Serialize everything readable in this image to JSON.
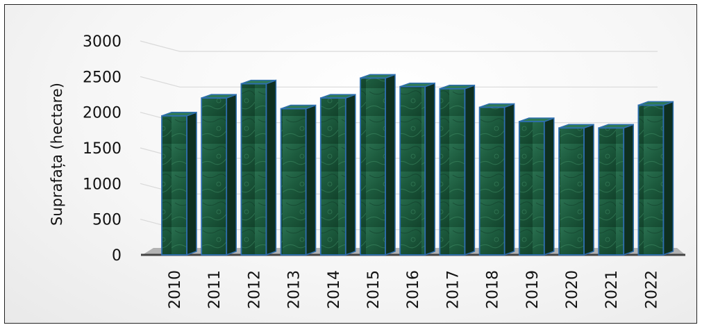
{
  "chart_data": {
    "type": "bar",
    "categories": [
      "2010",
      "2011",
      "2012",
      "2013",
      "2014",
      "2015",
      "2016",
      "2017",
      "2018",
      "2019",
      "2020",
      "2021",
      "2022"
    ],
    "values": [
      1950,
      2200,
      2400,
      2050,
      2200,
      2480,
      2360,
      2330,
      2070,
      1870,
      1780,
      1780,
      2100
    ],
    "ylabel": "Suprafața (hectare)",
    "ylim": [
      0,
      3000
    ],
    "yticks": [
      "0",
      "500",
      "1000",
      "1500",
      "2000",
      "2500",
      "3000"
    ],
    "grid": true,
    "style": "3d-bar",
    "colors": {
      "bar_front": "#1f5a3c",
      "bar_side": "#0e2f20",
      "bar_top": "#2f7a55",
      "bar_edge": "#2e6fb0",
      "floor": "#b3b3b3",
      "gridline": "#d9d9d9"
    }
  }
}
